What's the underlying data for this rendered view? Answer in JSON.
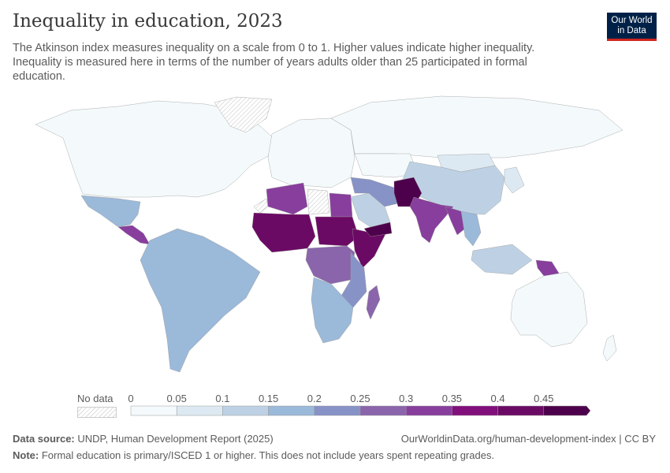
{
  "header": {
    "title": "Inequality in education, 2023",
    "subtitle": "The Atkinson index measures inequality on a scale from 0 to 1. Higher values indicate higher inequality. Inequality is measured here in terms of the number of years adults older than 25 participated in formal education.",
    "logo_line1": "Our World",
    "logo_line2": "in Data"
  },
  "legend": {
    "no_data_label": "No data",
    "ticks": [
      "0",
      "0.05",
      "0.1",
      "0.15",
      "0.2",
      "0.25",
      "0.3",
      "0.35",
      "0.4",
      "0.45"
    ],
    "colors": [
      "#f4fafc",
      "#dde9f2",
      "#bed1e4",
      "#9bb9d9",
      "#8793c6",
      "#8a65ab",
      "#883e9d",
      "#810f7c",
      "#6b0a64",
      "#4d004b"
    ]
  },
  "footer": {
    "source_label": "Data source:",
    "source": "UNDP, Human Development Report (2025)",
    "url": "OurWorldinData.org/human-development-index | CC BY",
    "note_label": "Note:",
    "note": "Formal education is primary/ISCED 1 or higher. This does not include years spent repeating grades."
  },
  "chart_data": {
    "type": "choropleth",
    "title": "Inequality in education, 2023",
    "scale_min": 0,
    "scale_max": 0.5,
    "bins": [
      0,
      0.05,
      0.1,
      0.15,
      0.2,
      0.25,
      0.3,
      0.35,
      0.4,
      0.45
    ],
    "regions": [
      {
        "name": "North America (Canada, USA)",
        "value": 0.03
      },
      {
        "name": "Greenland",
        "value": null
      },
      {
        "name": "Mexico",
        "value": 0.17
      },
      {
        "name": "Central America",
        "value": 0.32
      },
      {
        "name": "South America",
        "value": 0.17
      },
      {
        "name": "Europe",
        "value": 0.03
      },
      {
        "name": "Russia",
        "value": 0.02
      },
      {
        "name": "Central Asia",
        "value": 0.03
      },
      {
        "name": "China",
        "value": 0.13
      },
      {
        "name": "Mongolia",
        "value": 0.08
      },
      {
        "name": "Western Sahara",
        "value": null
      },
      {
        "name": "North Africa",
        "value": 0.32
      },
      {
        "name": "Libya",
        "value": null
      },
      {
        "name": "Egypt",
        "value": 0.3
      },
      {
        "name": "West Africa / Sahel",
        "value": 0.42
      },
      {
        "name": "Sudan / Chad",
        "value": 0.4
      },
      {
        "name": "Horn of Africa",
        "value": 0.42
      },
      {
        "name": "Central Africa",
        "value": 0.26
      },
      {
        "name": "East Africa",
        "value": 0.22
      },
      {
        "name": "Southern Africa",
        "value": 0.17
      },
      {
        "name": "Madagascar",
        "value": 0.28
      },
      {
        "name": "Saudi Arabia / Gulf",
        "value": 0.12
      },
      {
        "name": "Iran / Iraq",
        "value": 0.22
      },
      {
        "name": "Yemen",
        "value": 0.46
      },
      {
        "name": "Afghanistan / Pakistan",
        "value": 0.46
      },
      {
        "name": "India",
        "value": 0.34
      },
      {
        "name": "Myanmar / Bangladesh",
        "value": 0.32
      },
      {
        "name": "Mainland Southeast Asia",
        "value": 0.17
      },
      {
        "name": "Maritime Southeast Asia",
        "value": 0.13
      },
      {
        "name": "Papua New Guinea",
        "value": 0.33
      },
      {
        "name": "Japan / Korea",
        "value": 0.06
      },
      {
        "name": "Australia",
        "value": 0.02
      },
      {
        "name": "New Zealand",
        "value": 0.02
      }
    ]
  }
}
